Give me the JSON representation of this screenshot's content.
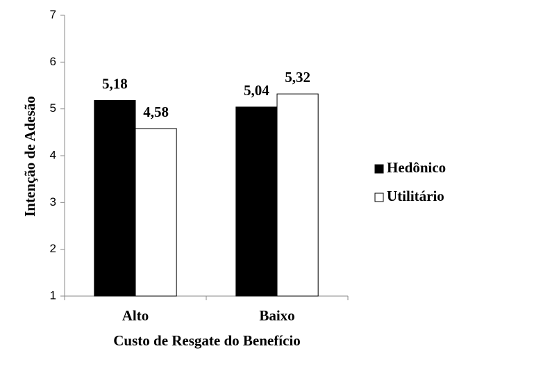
{
  "chart_data": {
    "type": "bar",
    "y_label": "Intenção de Adesão",
    "x_label": "Custo de Resgate do Benefício",
    "categories": [
      "Alto",
      "Baixo"
    ],
    "series": [
      {
        "name": "Hedônico",
        "color": "#000000",
        "values": [
          5.18,
          5.04
        ],
        "value_labels": [
          "5,18",
          "5,04"
        ]
      },
      {
        "name": "Utilitário",
        "color": "#ffffff",
        "values": [
          4.58,
          5.32
        ],
        "value_labels": [
          "4,58",
          "5,32"
        ]
      }
    ],
    "ylim": [
      1,
      7
    ],
    "yticks": [
      1,
      2,
      3,
      4,
      5,
      6,
      7
    ],
    "grid": false,
    "legend": "right"
  }
}
